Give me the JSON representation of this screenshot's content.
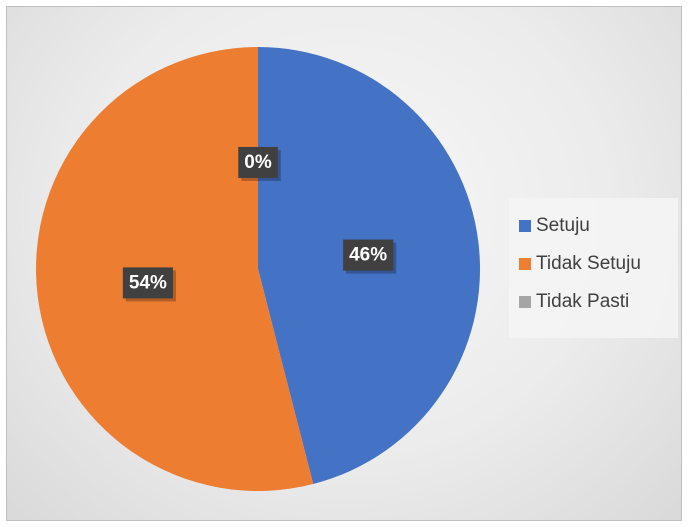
{
  "chart_data": {
    "type": "pie",
    "categories": [
      "Setuju",
      "Tidak Setuju",
      "Tidak Pasti"
    ],
    "values": [
      46,
      54,
      0
    ],
    "data_labels": [
      "46%",
      "54%",
      "0%"
    ],
    "colors": [
      "#4472C4",
      "#ED7D31",
      "#A5A5A5"
    ],
    "legend_position": "right",
    "start_angle_deg": 0,
    "direction": "clockwise"
  }
}
